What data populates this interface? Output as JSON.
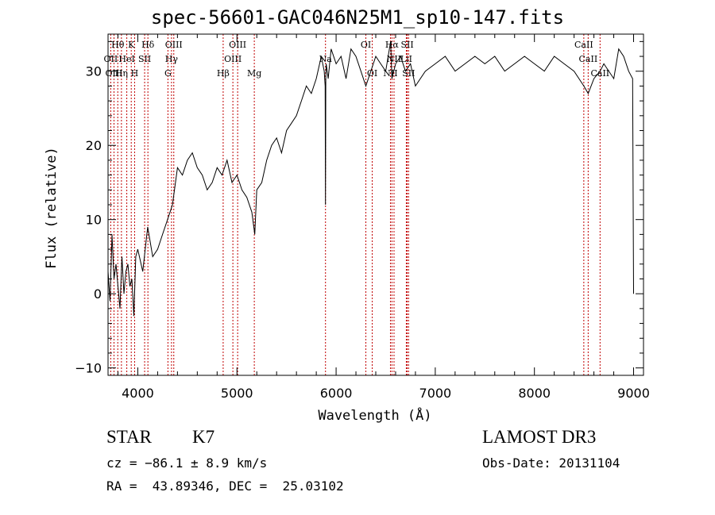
{
  "chart_data": {
    "type": "line",
    "title": "spec-56601-GAC046N25M1_sp10-147.fits",
    "xlabel": "Wavelength (Å)",
    "ylabel": "Flux (relative)",
    "xlim": [
      3700,
      9100
    ],
    "ylim": [
      -11,
      35
    ],
    "xticks": [
      4000,
      5000,
      6000,
      7000,
      8000,
      9000
    ],
    "yticks": [
      -10,
      0,
      10,
      20,
      30
    ],
    "series": [
      {
        "name": "spectrum",
        "x": [
          3700,
          3720,
          3740,
          3760,
          3780,
          3800,
          3820,
          3840,
          3860,
          3880,
          3900,
          3920,
          3940,
          3960,
          3980,
          4000,
          4050,
          4100,
          4150,
          4200,
          4250,
          4300,
          4350,
          4400,
          4450,
          4500,
          4550,
          4600,
          4650,
          4700,
          4750,
          4800,
          4850,
          4900,
          4950,
          5000,
          5050,
          5100,
          5150,
          5180,
          5200,
          5250,
          5300,
          5350,
          5400,
          5450,
          5500,
          5550,
          5600,
          5650,
          5700,
          5750,
          5800,
          5850,
          5880,
          5890,
          5893,
          5896,
          5900,
          5920,
          5950,
          6000,
          6050,
          6100,
          6150,
          6200,
          6250,
          6300,
          6350,
          6400,
          6450,
          6500,
          6550,
          6563,
          6600,
          6650,
          6700,
          6750,
          6800,
          6900,
          7000,
          7100,
          7200,
          7300,
          7400,
          7500,
          7600,
          7700,
          7800,
          7900,
          8000,
          8100,
          8200,
          8300,
          8400,
          8498,
          8542,
          8600,
          8662,
          8700,
          8800,
          8850,
          8900,
          8950,
          8990,
          9000
        ],
        "y": [
          3,
          -1,
          8,
          2,
          4,
          1,
          -2,
          5,
          0,
          3,
          4,
          1,
          2,
          -3,
          5,
          6,
          3,
          9,
          5,
          6,
          8,
          10,
          12,
          17,
          16,
          18,
          19,
          17,
          16,
          14,
          15,
          17,
          16,
          18,
          15,
          16,
          14,
          13,
          11,
          8,
          14,
          15,
          18,
          20,
          21,
          19,
          22,
          23,
          24,
          26,
          28,
          27,
          29,
          32,
          30,
          28,
          12,
          29,
          31,
          29,
          33,
          31,
          32,
          29,
          33,
          32,
          30,
          28,
          30,
          32,
          31,
          30,
          34,
          29,
          31,
          32,
          30,
          31,
          28,
          30,
          31,
          32,
          30,
          31,
          32,
          31,
          32,
          30,
          31,
          32,
          31,
          30,
          32,
          31,
          30,
          28,
          27,
          29,
          30,
          31,
          29,
          33,
          32,
          30,
          29,
          0
        ]
      }
    ],
    "lines": [
      {
        "label": "Hθ",
        "x": 3798,
        "tier": 0
      },
      {
        "label": "OII",
        "x": 3727,
        "tier": 1
      },
      {
        "label": "OIII",
        "x": 3760,
        "tier": 2
      },
      {
        "label": "Hη",
        "x": 3835,
        "tier": 2
      },
      {
        "label": "HeI",
        "x": 3889,
        "tier": 1
      },
      {
        "label": "K",
        "x": 3934,
        "tier": 0
      },
      {
        "label": "H",
        "x": 3968,
        "tier": 2
      },
      {
        "label": "SII",
        "x": 4069,
        "tier": 1
      },
      {
        "label": "Hδ",
        "x": 4102,
        "tier": 0
      },
      {
        "label": "OIII",
        "x": 4363,
        "tier": 0
      },
      {
        "label": "Hγ",
        "x": 4340,
        "tier": 1
      },
      {
        "label": "G",
        "x": 4304,
        "tier": 2
      },
      {
        "label": "Hβ",
        "x": 4861,
        "tier": 2
      },
      {
        "label": "OIII",
        "x": 4959,
        "tier": 1
      },
      {
        "label": "OIII",
        "x": 5007,
        "tier": 0
      },
      {
        "label": "Mg",
        "x": 5175,
        "tier": 2
      },
      {
        "label": "Na",
        "x": 5893,
        "tier": 1
      },
      {
        "label": "OI",
        "x": 6300,
        "tier": 0
      },
      {
        "label": "OI",
        "x": 6364,
        "tier": 2
      },
      {
        "label": "Hα",
        "x": 6563,
        "tier": 0
      },
      {
        "label": "NII",
        "x": 6548,
        "tier": 2
      },
      {
        "label": "NII",
        "x": 6584,
        "tier": 1
      },
      {
        "label": "SII",
        "x": 6717,
        "tier": 0
      },
      {
        "label": "SII",
        "x": 6731,
        "tier": 2
      },
      {
        "label": "LiI",
        "x": 6708,
        "tier": 1
      },
      {
        "label": "CaII",
        "x": 8498,
        "tier": 0
      },
      {
        "label": "CaII",
        "x": 8542,
        "tier": 1
      },
      {
        "label": "CaII",
        "x": 8662,
        "tier": 2
      }
    ]
  },
  "info": {
    "class_label": "STAR",
    "subclass": "K7",
    "survey": "LAMOST DR3",
    "cz": "cz = −86.1 ± 8.9 km/s",
    "obs_date": "Obs-Date: 20131104",
    "coords": "RA =  43.89346, DEC =  25.03102"
  }
}
